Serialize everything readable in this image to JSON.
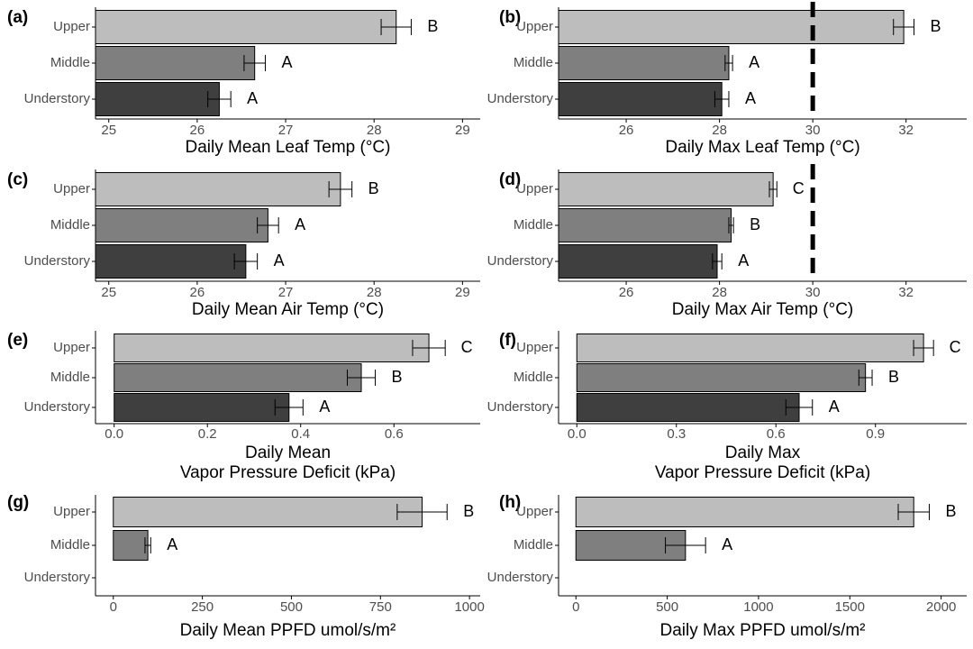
{
  "chart_data": [
    {
      "panel": "(a)",
      "type": "bar",
      "orientation": "horizontal",
      "categories": [
        "Understory",
        "Middle",
        "Upper"
      ],
      "values": [
        26.25,
        26.65,
        28.25
      ],
      "error": [
        0.13,
        0.12,
        0.17
      ],
      "letters": [
        "A",
        "A",
        "B"
      ],
      "xlabel": [
        "Daily Mean Leaf Temp (°C)"
      ],
      "xlim": [
        24.85,
        29.2
      ],
      "xticks": [
        25,
        26,
        27,
        28,
        29
      ],
      "xtick_labels": [
        "25",
        "26",
        "27",
        "28",
        "29"
      ],
      "threshold": null
    },
    {
      "panel": "(b)",
      "type": "bar",
      "orientation": "horizontal",
      "categories": [
        "Understory",
        "Middle",
        "Upper"
      ],
      "values": [
        28.05,
        28.2,
        31.95
      ],
      "error": [
        0.15,
        0.08,
        0.22
      ],
      "letters": [
        "A",
        "A",
        "B"
      ],
      "xlabel": [
        "Daily Max Leaf Temp (°C)"
      ],
      "xlim": [
        24.55,
        33.3
      ],
      "xticks": [
        26,
        28,
        30,
        32
      ],
      "xtick_labels": [
        "26",
        "28",
        "30",
        "32"
      ],
      "threshold": 30
    },
    {
      "panel": "(c)",
      "type": "bar",
      "orientation": "horizontal",
      "categories": [
        "Understory",
        "Middle",
        "Upper"
      ],
      "values": [
        26.55,
        26.8,
        27.62
      ],
      "error": [
        0.13,
        0.12,
        0.13
      ],
      "letters": [
        "A",
        "A",
        "B"
      ],
      "xlabel": [
        "Daily Mean Air Temp (°C)"
      ],
      "xlim": [
        24.85,
        29.2
      ],
      "xticks": [
        25,
        26,
        27,
        28,
        29
      ],
      "xtick_labels": [
        "25",
        "26",
        "27",
        "28",
        "29"
      ],
      "threshold": null
    },
    {
      "panel": "(d)",
      "type": "bar",
      "orientation": "horizontal",
      "categories": [
        "Understory",
        "Middle",
        "Upper"
      ],
      "values": [
        27.95,
        28.25,
        29.15
      ],
      "error": [
        0.1,
        0.05,
        0.08
      ],
      "letters": [
        "A",
        "B",
        "C"
      ],
      "xlabel": [
        "Daily Max Air Temp (°C)"
      ],
      "xlim": [
        24.55,
        33.3
      ],
      "xticks": [
        26,
        28,
        30,
        32
      ],
      "xtick_labels": [
        "26",
        "28",
        "30",
        "32"
      ],
      "threshold": 30
    },
    {
      "panel": "(e)",
      "type": "bar",
      "orientation": "horizontal",
      "categories": [
        "Understory",
        "Middle",
        "Upper"
      ],
      "values": [
        0.375,
        0.53,
        0.675
      ],
      "error": [
        0.03,
        0.03,
        0.035
      ],
      "letters": [
        "A",
        "B",
        "C"
      ],
      "xlabel": [
        "Daily Mean",
        "Vapor Pressure Deficit (kPa)"
      ],
      "xlim": [
        -0.04,
        0.785
      ],
      "xticks": [
        0,
        0.2,
        0.4,
        0.6
      ],
      "xtick_labels": [
        "0.0",
        "0.2",
        "0.4",
        "0.6"
      ],
      "threshold": null
    },
    {
      "panel": "(f)",
      "type": "bar",
      "orientation": "horizontal",
      "categories": [
        "Understory",
        "Middle",
        "Upper"
      ],
      "values": [
        0.67,
        0.87,
        1.045
      ],
      "error": [
        0.04,
        0.02,
        0.03
      ],
      "letters": [
        "A",
        "B",
        "C"
      ],
      "xlabel": [
        "Daily Max",
        "Vapor Pressure Deficit (kPa)"
      ],
      "xlim": [
        -0.055,
        1.175
      ],
      "xticks": [
        0,
        0.3,
        0.6,
        0.9
      ],
      "xtick_labels": [
        "0.0",
        "0.3",
        "0.6",
        "0.9"
      ],
      "threshold": null
    },
    {
      "panel": "(g)",
      "type": "bar",
      "orientation": "horizontal",
      "categories": [
        "Understory",
        "Middle",
        "Upper"
      ],
      "values": [
        0,
        97,
        867
      ],
      "error": [
        0,
        8,
        70
      ],
      "letters": [
        "",
        "A",
        "B"
      ],
      "xlabel": [
        "Daily Mean PPFD umol/s/m²"
      ],
      "xlim": [
        -50,
        1030
      ],
      "xticks": [
        0,
        250,
        500,
        750,
        1000
      ],
      "xtick_labels": [
        "0",
        "250",
        "500",
        "750",
        "1000"
      ],
      "threshold": null
    },
    {
      "panel": "(h)",
      "type": "bar",
      "orientation": "horizontal",
      "categories": [
        "Understory",
        "Middle",
        "Upper"
      ],
      "values": [
        0,
        600,
        1850
      ],
      "error": [
        0,
        110,
        85
      ],
      "letters": [
        "",
        "A",
        "B"
      ],
      "xlabel": [
        "Daily Max PPFD umol/s/m²"
      ],
      "xlim": [
        -95,
        2140
      ],
      "xticks": [
        0,
        500,
        1000,
        1500,
        2000
      ],
      "xtick_labels": [
        "0",
        "500",
        "1000",
        "1500",
        "2000"
      ],
      "threshold": null
    }
  ],
  "colors": {
    "Upper": "#bdbdbd",
    "Middle": "#7f7f7f",
    "Understory": "#3f3f3f",
    "bar_outline": "#000000",
    "axis": "#000000",
    "threshold_line": "#000000"
  }
}
